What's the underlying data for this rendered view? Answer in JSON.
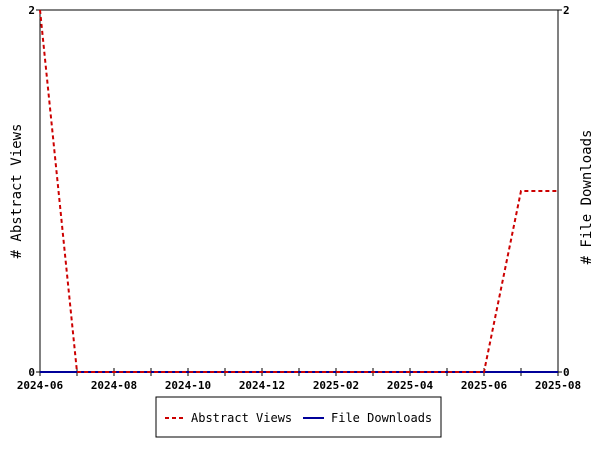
{
  "chart_data": {
    "type": "line",
    "x": [
      "2024-06",
      "2024-07",
      "2024-08",
      "2024-09",
      "2024-10",
      "2024-11",
      "2024-12",
      "2025-01",
      "2025-02",
      "2025-03",
      "2025-04",
      "2025-05",
      "2025-06",
      "2025-07",
      "2025-08"
    ],
    "x_tick_labels": [
      "2024-06",
      "2024-08",
      "2024-10",
      "2024-12",
      "2025-02",
      "2025-04",
      "2025-06",
      "2025-08"
    ],
    "ylabel_left": "# Abstract Views",
    "ylabel_right": "# File Downloads",
    "ylim_left": [
      0,
      2
    ],
    "ylim_right": [
      0,
      2
    ],
    "y_tick_labels_left": [
      "0",
      "2"
    ],
    "y_tick_labels_right": [
      "0",
      "2"
    ],
    "grid": false,
    "legend_position": "bottom",
    "series": [
      {
        "name": "Abstract Views",
        "axis": "left",
        "style": "dashed",
        "color": "#cc0000",
        "values": [
          2,
          0,
          0,
          0,
          0,
          0,
          0,
          0,
          0,
          0,
          0,
          0,
          0,
          1,
          1
        ]
      },
      {
        "name": "File Downloads",
        "axis": "right",
        "style": "solid",
        "color": "#000099",
        "values": [
          0,
          0,
          0,
          0,
          0,
          0,
          0,
          0,
          0,
          0,
          0,
          0,
          0,
          0,
          0
        ]
      }
    ]
  }
}
